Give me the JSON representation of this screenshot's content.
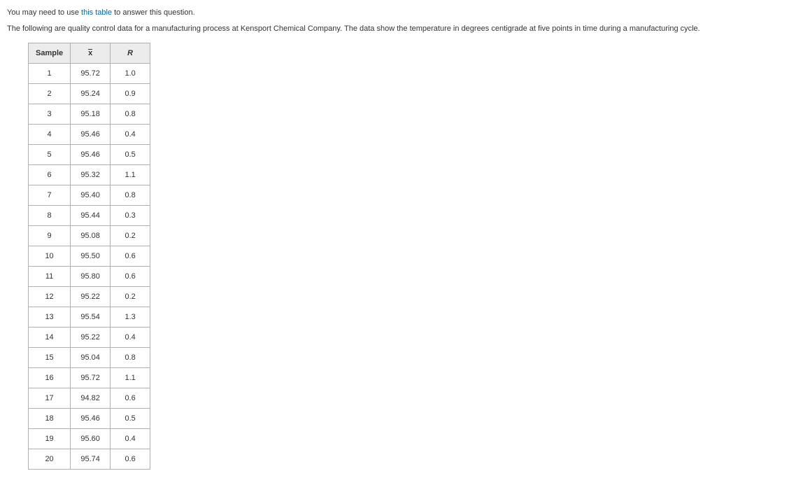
{
  "intro": {
    "prefix": "You may need to use ",
    "link_text": "this table",
    "suffix": " to answer this question."
  },
  "description": "The following are quality control data for a manufacturing process at Kensport Chemical Company. The data show the temperature in degrees centigrade at five points in time during a manufacturing cycle.",
  "table": {
    "headers": {
      "col1": "Sample",
      "col2": "x",
      "col3": "R"
    },
    "rows": [
      {
        "sample": "1",
        "x": "95.72",
        "r": "1.0"
      },
      {
        "sample": "2",
        "x": "95.24",
        "r": "0.9"
      },
      {
        "sample": "3",
        "x": "95.18",
        "r": "0.8"
      },
      {
        "sample": "4",
        "x": "95.46",
        "r": "0.4"
      },
      {
        "sample": "5",
        "x": "95.46",
        "r": "0.5"
      },
      {
        "sample": "6",
        "x": "95.32",
        "r": "1.1"
      },
      {
        "sample": "7",
        "x": "95.40",
        "r": "0.8"
      },
      {
        "sample": "8",
        "x": "95.44",
        "r": "0.3"
      },
      {
        "sample": "9",
        "x": "95.08",
        "r": "0.2"
      },
      {
        "sample": "10",
        "x": "95.50",
        "r": "0.6"
      },
      {
        "sample": "11",
        "x": "95.80",
        "r": "0.6"
      },
      {
        "sample": "12",
        "x": "95.22",
        "r": "0.2"
      },
      {
        "sample": "13",
        "x": "95.54",
        "r": "1.3"
      },
      {
        "sample": "14",
        "x": "95.22",
        "r": "0.4"
      },
      {
        "sample": "15",
        "x": "95.04",
        "r": "0.8"
      },
      {
        "sample": "16",
        "x": "95.72",
        "r": "1.1"
      },
      {
        "sample": "17",
        "x": "94.82",
        "r": "0.6"
      },
      {
        "sample": "18",
        "x": "95.46",
        "r": "0.5"
      },
      {
        "sample": "19",
        "x": "95.60",
        "r": "0.4"
      },
      {
        "sample": "20",
        "x": "95.74",
        "r": "0.6"
      }
    ]
  },
  "styling": {
    "body_font_family": "Verdana, Arial, sans-serif",
    "body_font_size_pt": 8,
    "text_color": "#333333",
    "link_color": "#0066aa",
    "table_border_color": "#b0b0b0",
    "header_bg": "#ececec",
    "background": "#ffffff"
  }
}
